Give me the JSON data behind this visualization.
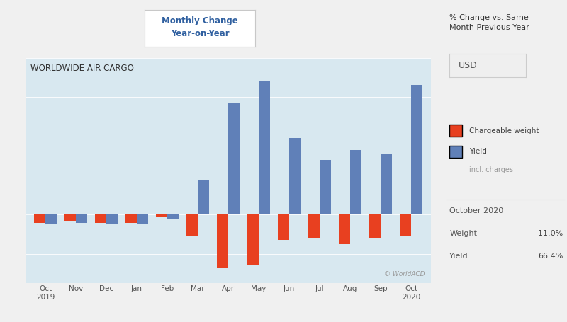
{
  "title": "WORLDWIDE AIR CARGO",
  "header_title": "Monthly Change\nYear-on-Year",
  "sidebar_title": "% Change vs. Same\nMonth Previous Year",
  "currency_label": "USD",
  "legend_label1": "Chargeable weight",
  "legend_label2": "Yield",
  "legend_sub": "incl. charges",
  "watermark": "© WorldACD",
  "info_month": "October 2020",
  "info_weight_label": "Weight",
  "info_weight_val": "-11.0%",
  "info_yield_label": "Yield",
  "info_yield_val": "66.4%",
  "categories": [
    "Oct\n2019",
    "Nov",
    "Dec",
    "Jan",
    "Feb",
    "Mar",
    "Apr",
    "May",
    "Jun",
    "Jul",
    "Aug",
    "Sep",
    "Oct\n2020"
  ],
  "yield_values": [
    -5,
    -4,
    -5,
    -5,
    -2,
    18,
    57,
    68,
    39,
    28,
    33,
    31,
    66.4
  ],
  "weight_values": [
    -4,
    -3,
    -4,
    -4,
    -1,
    -11,
    -27,
    -26,
    -13,
    -12,
    -15,
    -12,
    -11
  ],
  "bar_color_yield": "#6080b8",
  "bar_color_weight": "#e84020",
  "chart_bg": "#d8e8f0",
  "outer_bg": "#f0f0f0",
  "header_bg": "#ffffff",
  "ylim": [
    -35,
    80
  ],
  "bar_width": 0.38
}
